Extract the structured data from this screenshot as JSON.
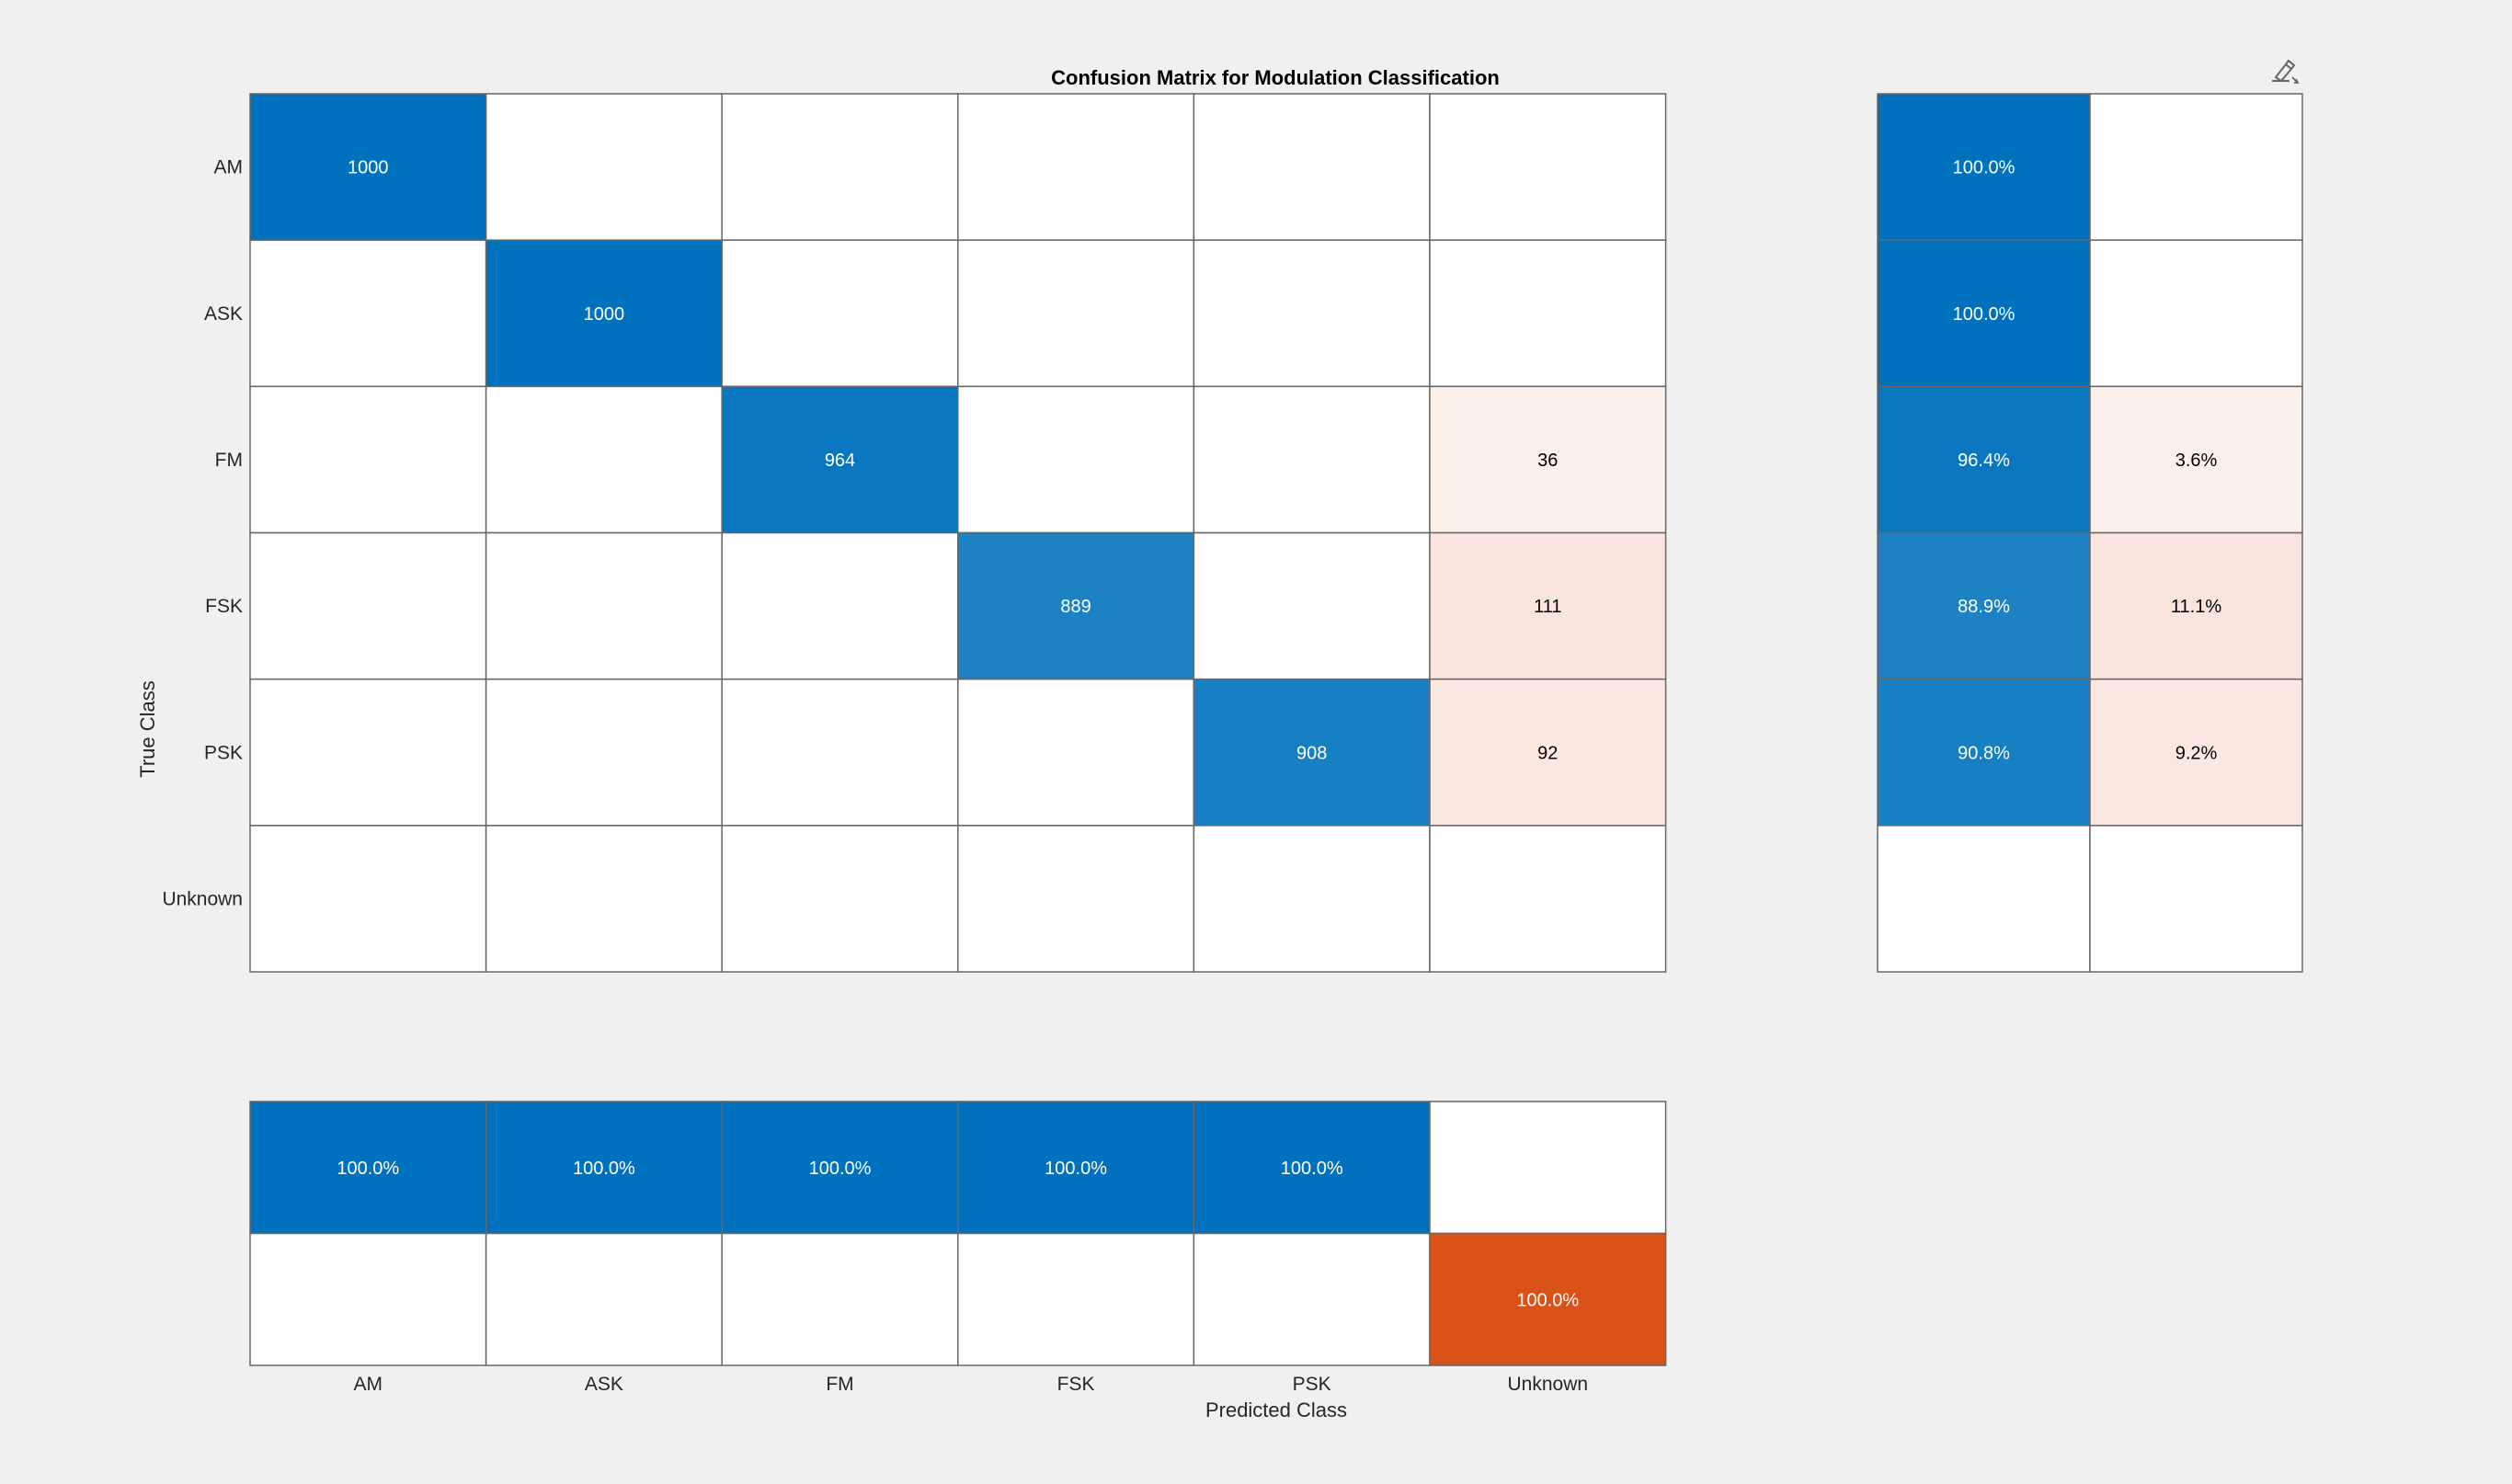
{
  "chart_data": {
    "type": "heatmap",
    "title": "Confusion Matrix for Modulation Classification",
    "xlabel": "Predicted Class",
    "ylabel": "True Class",
    "classes": [
      "AM",
      "ASK",
      "FM",
      "FSK",
      "PSK",
      "Unknown"
    ],
    "matrix": [
      [
        1000,
        0,
        0,
        0,
        0,
        0
      ],
      [
        0,
        1000,
        0,
        0,
        0,
        0
      ],
      [
        0,
        0,
        964,
        0,
        0,
        36
      ],
      [
        0,
        0,
        0,
        889,
        0,
        111
      ],
      [
        0,
        0,
        0,
        0,
        908,
        92
      ],
      [
        0,
        0,
        0,
        0,
        0,
        0
      ]
    ],
    "row_summary": {
      "correct": [
        "100.0%",
        "100.0%",
        "96.4%",
        "88.9%",
        "90.8%",
        ""
      ],
      "incorrect": [
        "",
        "",
        "3.6%",
        "11.1%",
        "9.2%",
        ""
      ],
      "correct_values": [
        100.0,
        100.0,
        96.4,
        88.9,
        90.8,
        0
      ],
      "incorrect_values": [
        0,
        0,
        3.6,
        11.1,
        9.2,
        0
      ]
    },
    "column_summary": {
      "correct": [
        "100.0%",
        "100.0%",
        "100.0%",
        "100.0%",
        "100.0%",
        ""
      ],
      "incorrect": [
        "",
        "",
        "",
        "",
        "",
        "100.0%"
      ],
      "correct_values": [
        100.0,
        100.0,
        100.0,
        100.0,
        100.0,
        0
      ],
      "incorrect_values": [
        0,
        0,
        0,
        0,
        0,
        100.0
      ]
    },
    "colors": {
      "correct": "#0072bd",
      "incorrect": "#d95319",
      "grid": "#666666",
      "background": "#f0f0f0"
    }
  },
  "toolbar": {
    "brush_icon": "brush-data-icon"
  }
}
